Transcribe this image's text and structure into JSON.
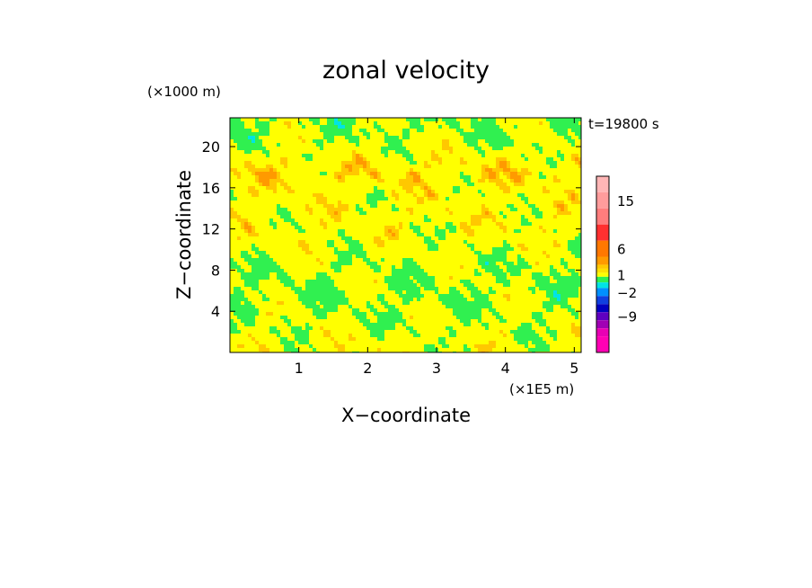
{
  "chart_data": {
    "type": "heatmap",
    "title": "zonal velocity",
    "xlabel": "X−coordinate",
    "ylabel": "Z−coordinate",
    "x_unit": "(×1E5 m)",
    "y_unit": "(×1000 m)",
    "time_label": "t=19800 s",
    "xlim": [
      0,
      5.1
    ],
    "ylim": [
      0,
      22.8
    ],
    "x_ticks": [
      1,
      2,
      3,
      4,
      5
    ],
    "y_ticks": [
      4,
      8,
      12,
      16,
      20
    ],
    "colorbar": {
      "labels": [
        "15",
        "6",
        "1",
        "−2",
        "−9"
      ],
      "label_values": [
        15,
        6,
        1,
        -2,
        -9
      ],
      "levels": [
        {
          "value": 18,
          "color": "#ffb6b6"
        },
        {
          "value": 15,
          "color": "#ff9c9c"
        },
        {
          "value": 12,
          "color": "#ff7d7d"
        },
        {
          "value": 9,
          "color": "#ff3030"
        },
        {
          "value": 6,
          "color": "#ff7800"
        },
        {
          "value": 4,
          "color": "#ff9a00"
        },
        {
          "value": 3,
          "color": "#ffc800"
        },
        {
          "value": 2,
          "color": "#ffe000"
        },
        {
          "value": 1,
          "color": "#ffff00"
        },
        {
          "value": 0,
          "color": "#30f050"
        },
        {
          "value": -1,
          "color": "#00e4e4"
        },
        {
          "value": -2,
          "color": "#0090ff"
        },
        {
          "value": -4,
          "color": "#1040e0"
        },
        {
          "value": -6,
          "color": "#0000c0"
        },
        {
          "value": -9,
          "color": "#6000c0"
        },
        {
          "value": -12,
          "color": "#a000b4"
        },
        {
          "value": -15,
          "color": "#e800b4"
        },
        {
          "value": -18,
          "color": "#ff00b4"
        }
      ]
    },
    "field_colors": {
      "positive_low": "#ffff00",
      "near_zero": "#30f050",
      "positive_mid": "#ffc800",
      "positive_high": "#ff9a00",
      "negative_low": "#00e4e4",
      "negative_mid": "#0090ff",
      "negative_high": "#0000c0"
    }
  }
}
